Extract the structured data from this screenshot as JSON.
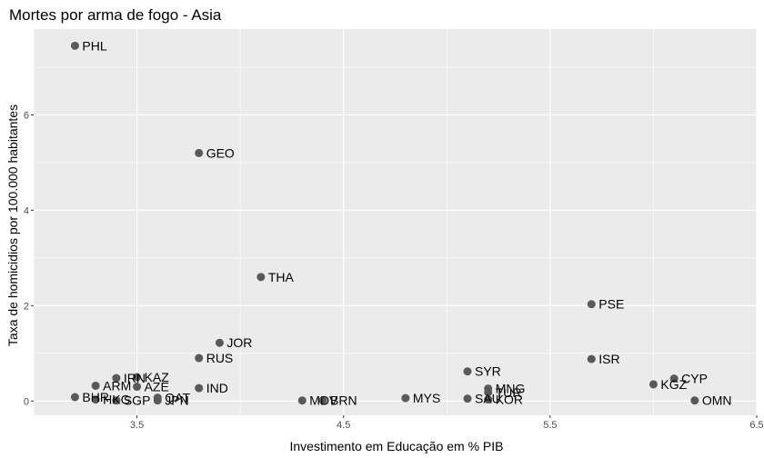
{
  "chart_data": {
    "type": "scatter",
    "title": "Mortes por arma de fogo - Asia",
    "xlabel": "Investimento em Educação em % PIB",
    "ylabel": "Taxa de homicidios por 100.000 habitantes",
    "xlim": [
      3.0,
      6.5
    ],
    "ylim": [
      -0.3,
      7.8
    ],
    "x_ticks": [
      3.5,
      4.5,
      5.5,
      6.5
    ],
    "x_tick_labels": [
      "3.5",
      "4.5",
      "5.5",
      "6.5"
    ],
    "y_ticks": [
      0,
      2,
      4,
      6
    ],
    "y_tick_labels": [
      "0",
      "2",
      "4",
      "6"
    ],
    "grid": true,
    "point_color": "#595959",
    "panel_color": "#ebebeb",
    "points": [
      {
        "label": "PHL",
        "x": 3.2,
        "y": 7.45
      },
      {
        "label": "GEO",
        "x": 3.8,
        "y": 5.2
      },
      {
        "label": "THA",
        "x": 4.1,
        "y": 2.6
      },
      {
        "label": "PSE",
        "x": 5.7,
        "y": 2.03
      },
      {
        "label": "JOR",
        "x": 3.9,
        "y": 1.22
      },
      {
        "label": "RUS",
        "x": 3.8,
        "y": 0.9
      },
      {
        "label": "ISR",
        "x": 5.7,
        "y": 0.88
      },
      {
        "label": "SYR",
        "x": 5.1,
        "y": 0.62
      },
      {
        "label": "KAZ",
        "x": 3.5,
        "y": 0.5
      },
      {
        "label": "IRN",
        "x": 3.4,
        "y": 0.48
      },
      {
        "label": "CYP",
        "x": 6.1,
        "y": 0.47
      },
      {
        "label": "KGZ",
        "x": 6.0,
        "y": 0.35
      },
      {
        "label": "ARM",
        "x": 3.3,
        "y": 0.32
      },
      {
        "label": "AZE",
        "x": 3.5,
        "y": 0.3
      },
      {
        "label": "IND",
        "x": 3.8,
        "y": 0.27
      },
      {
        "label": "MNG",
        "x": 5.2,
        "y": 0.26
      },
      {
        "label": "TUR",
        "x": 5.2,
        "y": 0.18
      },
      {
        "label": "BHR",
        "x": 3.2,
        "y": 0.08
      },
      {
        "label": "QAT",
        "x": 3.6,
        "y": 0.07
      },
      {
        "label": "MYS",
        "x": 4.8,
        "y": 0.06
      },
      {
        "label": "SAU",
        "x": 5.1,
        "y": 0.05
      },
      {
        "label": "HKG",
        "x": 3.3,
        "y": 0.03
      },
      {
        "label": "KOR",
        "x": 5.2,
        "y": 0.03
      },
      {
        "label": "SGP",
        "x": 3.4,
        "y": 0.01
      },
      {
        "label": "JPN",
        "x": 3.6,
        "y": 0.01
      },
      {
        "label": "MDV",
        "x": 4.3,
        "y": 0.01
      },
      {
        "label": "BRN",
        "x": 4.4,
        "y": 0.01
      },
      {
        "label": "OMN",
        "x": 6.2,
        "y": 0.01
      }
    ]
  }
}
